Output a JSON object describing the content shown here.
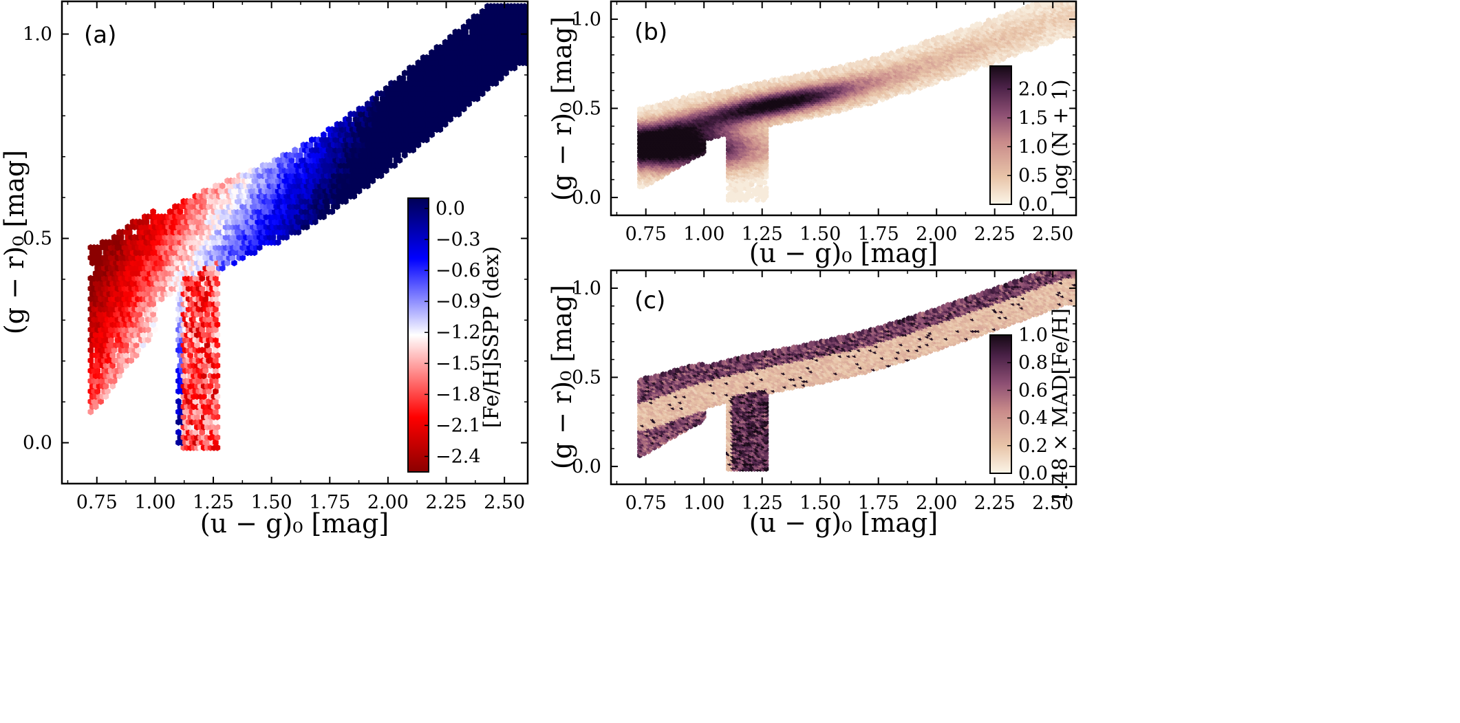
{
  "chart_data": [
    {
      "type": "heatmap",
      "panel_label": "(a)",
      "xlabel": "(u − g)₀ [mag]",
      "ylabel": "(g − r)₀ [mag]",
      "xlim": [
        0.6,
        2.6
      ],
      "ylim": [
        -0.1,
        1.08
      ],
      "xticks": [
        0.75,
        1.0,
        1.25,
        1.5,
        1.75,
        2.0,
        2.25,
        2.5
      ],
      "xtick_labels": [
        "0.75",
        "1.00",
        "1.25",
        "1.50",
        "1.75",
        "2.00",
        "2.25",
        "2.50"
      ],
      "yticks": [
        0.0,
        0.5,
        1.0
      ],
      "ytick_labels": [
        "0.0",
        "0.5",
        "1.0"
      ],
      "colorbar": {
        "label": "[Fe/H]SSPP (dex)",
        "range": [
          -2.55,
          0.1
        ],
        "ticks": [
          0.0,
          -0.3,
          -0.6,
          -0.9,
          -1.2,
          -1.5,
          -1.8,
          -2.1,
          -2.4
        ],
        "tick_labels": [
          "0.0",
          "−0.3",
          "−0.6",
          "−0.9",
          "−1.2",
          "−1.5",
          "−1.8",
          "−2.1",
          "−2.4"
        ],
        "colors": [
          "#8b0000",
          "#ff0000",
          "#ffffff",
          "#0000ff",
          "#000055"
        ]
      },
      "stellar_locus": {
        "x": [
          0.72,
          0.8,
          0.9,
          1.0,
          1.15,
          1.3,
          1.5,
          1.7,
          1.9,
          2.1,
          2.3,
          2.55
        ],
        "y": [
          0.32,
          0.35,
          0.4,
          0.44,
          0.49,
          0.53,
          0.58,
          0.64,
          0.72,
          0.81,
          0.9,
          1.02
        ]
      },
      "metallicity_gradient": "metal-poor (red) at bluer u−g and redder g−r edge; metal-rich (blue) at redder u−g"
    },
    {
      "type": "heatmap",
      "panel_label": "(b)",
      "xlabel": "(u − g)₀ [mag]",
      "ylabel": "(g − r)₀ [mag]",
      "xlim": [
        0.6,
        2.6
      ],
      "ylim": [
        -0.1,
        1.1
      ],
      "xticks": [
        0.75,
        1.0,
        1.25,
        1.5,
        1.75,
        2.0,
        2.25,
        2.5
      ],
      "xtick_labels": [
        "0.75",
        "1.00",
        "1.25",
        "1.50",
        "1.75",
        "2.00",
        "2.25",
        "2.50"
      ],
      "yticks": [
        0.0,
        0.5,
        1.0
      ],
      "ytick_labels": [
        "0.0",
        "0.5",
        "1.0"
      ],
      "colorbar": {
        "label": "log (N + 1)",
        "range": [
          0.0,
          2.4
        ],
        "ticks": [
          0.0,
          0.5,
          1.0,
          1.5,
          2.0
        ],
        "tick_labels": [
          "0.0",
          "0.5",
          "1.0",
          "1.5",
          "2.0"
        ],
        "colors": [
          "#fbf5e8",
          "#e8c4a8",
          "#c98b8a",
          "#8d4f73",
          "#4a2147",
          "#150914"
        ]
      },
      "density_peak": {
        "x": 0.9,
        "y": 0.28,
        "log_n_plus_1": 2.3
      }
    },
    {
      "type": "heatmap",
      "panel_label": "(c)",
      "xlabel": "(u − g)₀ [mag]",
      "ylabel": "(g − r)₀ [mag]",
      "xlim": [
        0.6,
        2.6
      ],
      "ylim": [
        -0.1,
        1.1
      ],
      "xticks": [
        0.75,
        1.0,
        1.25,
        1.5,
        1.75,
        2.0,
        2.25,
        2.5
      ],
      "xtick_labels": [
        "0.75",
        "1.00",
        "1.25",
        "1.50",
        "1.75",
        "2.00",
        "2.25",
        "2.50"
      ],
      "yticks": [
        0.0,
        0.5,
        1.0
      ],
      "ytick_labels": [
        "0.0",
        "0.5",
        "1.0"
      ],
      "colorbar": {
        "label": "1.48 × MAD[Fe/H]",
        "range": [
          0.0,
          1.0
        ],
        "ticks": [
          0.0,
          0.2,
          0.4,
          0.6,
          0.8,
          1.0
        ],
        "tick_labels": [
          "0.0",
          "0.2",
          "0.4",
          "0.6",
          "0.8",
          "1.0"
        ],
        "colors": [
          "#fbf5e8",
          "#e8c4a8",
          "#c98b8a",
          "#8d4f73",
          "#4a2147",
          "#150914"
        ]
      },
      "high_scatter_regions": "upper edge of locus and the 1.15–1.25 tail"
    }
  ]
}
